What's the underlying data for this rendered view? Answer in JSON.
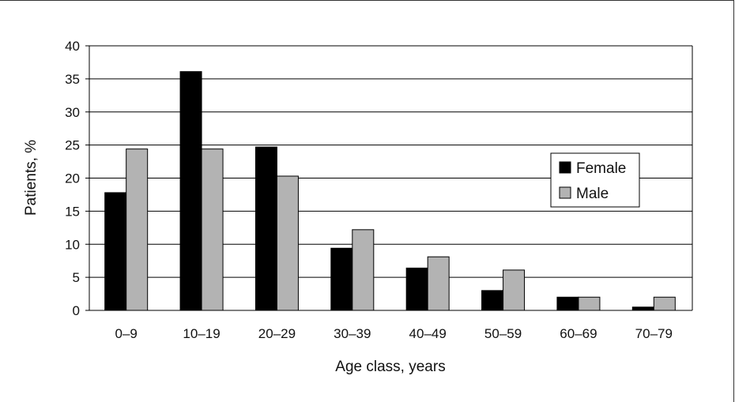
{
  "chart_data": {
    "type": "bar",
    "categories": [
      "0–9",
      "10–19",
      "20–29",
      "30–39",
      "40–49",
      "50–59",
      "60–69",
      "70–79"
    ],
    "series": [
      {
        "name": "Female",
        "color": "#000000",
        "values": [
          17.8,
          36.1,
          24.7,
          9.4,
          6.4,
          3.0,
          2.0,
          0.5
        ]
      },
      {
        "name": "Male",
        "color": "#b3b3b3",
        "values": [
          24.4,
          24.4,
          20.3,
          12.2,
          8.1,
          6.1,
          2.0,
          2.0
        ]
      }
    ],
    "title": "",
    "xlabel": "Age class, years",
    "ylabel": "Patients, %",
    "ylim": [
      0,
      40
    ],
    "yticks": [
      "0",
      "5",
      "10",
      "15",
      "20",
      "25",
      "30",
      "35",
      "40"
    ],
    "grid": true,
    "legend_position": "right"
  }
}
